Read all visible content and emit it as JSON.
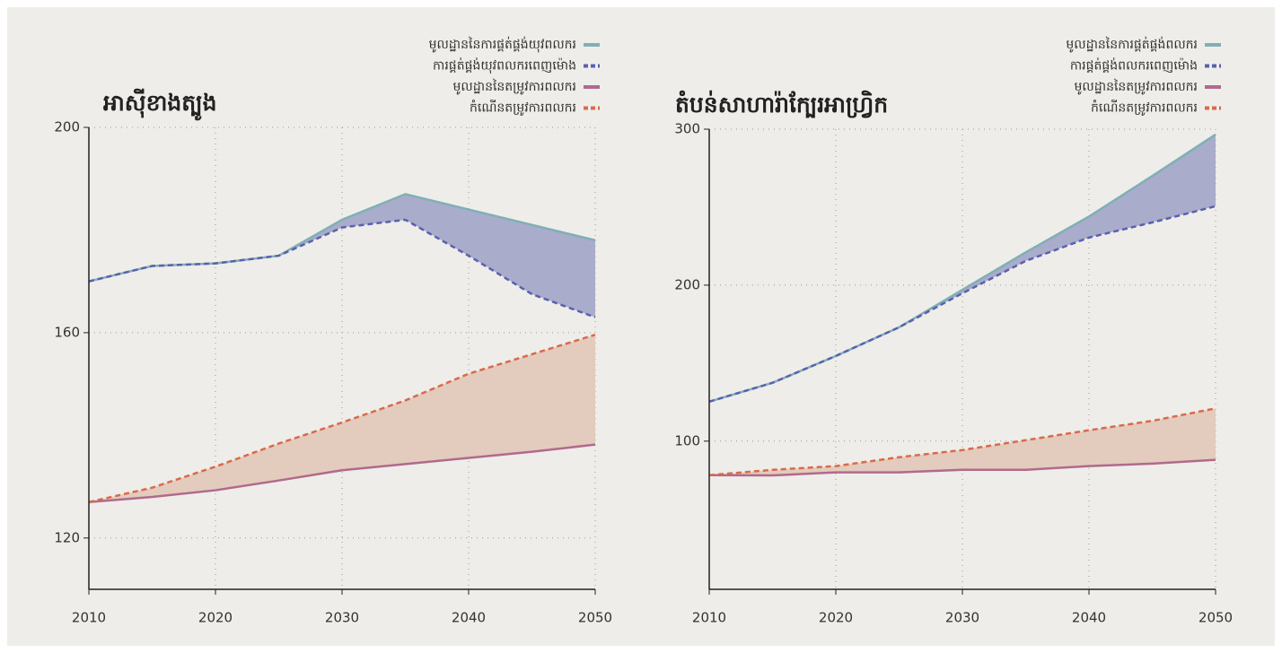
{
  "chart_data": [
    {
      "type": "line",
      "title": "អាស៊ីខាងត្បូង",
      "x": [
        2010,
        2015,
        2020,
        2025,
        2030,
        2035,
        2040,
        2045,
        2050
      ],
      "series": [
        {
          "name": "មូលដ្ឋាននៃការផ្គត់ផ្គង់យុវពលករ",
          "color": "#7fb0b5",
          "linestyle": "solid",
          "values": [
            170,
            173,
            173.5,
            175,
            182,
            187,
            184,
            181,
            178
          ]
        },
        {
          "name": "ការផ្គត់ផ្គង់យុវពលករពេញម៉ោង",
          "color": "#5a60b0",
          "linestyle": "dashed",
          "values": [
            170,
            173,
            173.5,
            175,
            180.5,
            182,
            175,
            167.5,
            163
          ]
        },
        {
          "name": "មូលដ្ឋាននៃតម្រូវការពលករ",
          "color": "#b06a8c",
          "linestyle": "solid",
          "values": [
            127,
            128,
            129.3,
            131.2,
            133.2,
            134.4,
            135.6,
            136.8,
            138.2
          ]
        },
        {
          "name": "កំណើនតម្រូវការពលករ",
          "color": "#d96a4a",
          "linestyle": "dashed",
          "values": [
            127,
            129.8,
            133.9,
            138.4,
            142.5,
            146.8,
            152,
            155.8,
            159.6
          ]
        }
      ],
      "bands": [
        {
          "between": [
            0,
            1
          ],
          "color": "#a9acca"
        },
        {
          "between": [
            3,
            2
          ],
          "color": "#e3cbbd"
        }
      ],
      "xlim": [
        2010,
        2050
      ],
      "xticks": [
        2010,
        2020,
        2030,
        2040,
        2050
      ],
      "ylim": [
        110,
        200
      ],
      "yticks": [
        120,
        160,
        200
      ],
      "grid": true,
      "legend": "upper right"
    },
    {
      "type": "line",
      "title": "តំបន់សាហារ៉ាក្បែរអាហ្រ្វិក",
      "x": [
        2010,
        2015,
        2020,
        2025,
        2030,
        2035,
        2040,
        2045,
        2050
      ],
      "series": [
        {
          "name": "មូលដ្ឋាននៃការផ្គត់ផ្គង់ពលករ",
          "color": "#7fb0b5",
          "linestyle": "solid",
          "values": [
            125.3,
            137.4,
            154.6,
            173,
            197,
            221,
            244,
            270,
            296.6
          ]
        },
        {
          "name": "ការផ្គត់ផ្គង់ពលករពេញម៉ោង",
          "color": "#5a60b0",
          "linestyle": "dashed",
          "values": [
            125.3,
            137.4,
            154.6,
            173,
            194.8,
            215.5,
            230.5,
            240.2,
            250.6
          ]
        },
        {
          "name": "មូលដ្ឋាននៃតម្រូវការពលករ",
          "color": "#b06a8c",
          "linestyle": "solid",
          "values": [
            78.2,
            78,
            80,
            80,
            81.6,
            81.6,
            84,
            85.6,
            88
          ]
        },
        {
          "name": "កំណើនតម្រូវការពលករ",
          "color": "#d96a4a",
          "linestyle": "dashed",
          "values": [
            78.2,
            81.6,
            84,
            89.7,
            94.3,
            100.6,
            107,
            113,
            121
          ]
        }
      ],
      "bands": [
        {
          "between": [
            0,
            1
          ],
          "color": "#a9acca"
        },
        {
          "between": [
            3,
            2
          ],
          "color": "#e3cbbd"
        }
      ],
      "xlim": [
        2010,
        2050
      ],
      "xticks": [
        2010,
        2020,
        2030,
        2040,
        2050
      ],
      "ylim": [
        5,
        300
      ],
      "yticks": [
        100,
        200,
        300
      ],
      "grid": true,
      "legend": "upper right"
    }
  ]
}
